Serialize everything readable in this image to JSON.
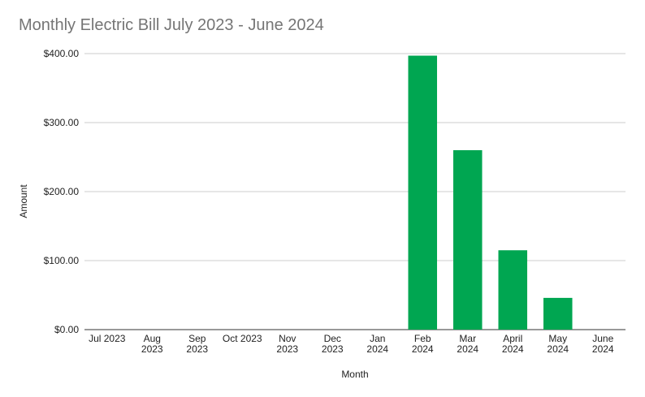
{
  "chart_data": {
    "type": "bar",
    "title": "Monthly Electric Bill July 2023 - June 2024",
    "xlabel": "Month",
    "ylabel": "Amount",
    "categories": [
      [
        "Jul 2023"
      ],
      [
        "Aug",
        "2023"
      ],
      [
        "Sep",
        "2023"
      ],
      [
        "Oct 2023"
      ],
      [
        "Nov",
        "2023"
      ],
      [
        "Dec",
        "2023"
      ],
      [
        "Jan",
        "2024"
      ],
      [
        "Feb",
        "2024"
      ],
      [
        "Mar",
        "2024"
      ],
      [
        "April",
        "2024"
      ],
      [
        "May",
        "2024"
      ],
      [
        "June",
        "2024"
      ]
    ],
    "values": [
      0,
      0,
      0,
      0,
      0,
      0,
      0,
      397,
      260,
      115,
      46,
      0
    ],
    "yticks": [
      "$0.00",
      "$100.00",
      "$200.00",
      "$300.00",
      "$400.00"
    ],
    "ylim": [
      0,
      400
    ],
    "grid": true,
    "bar_color": "#00a651"
  }
}
